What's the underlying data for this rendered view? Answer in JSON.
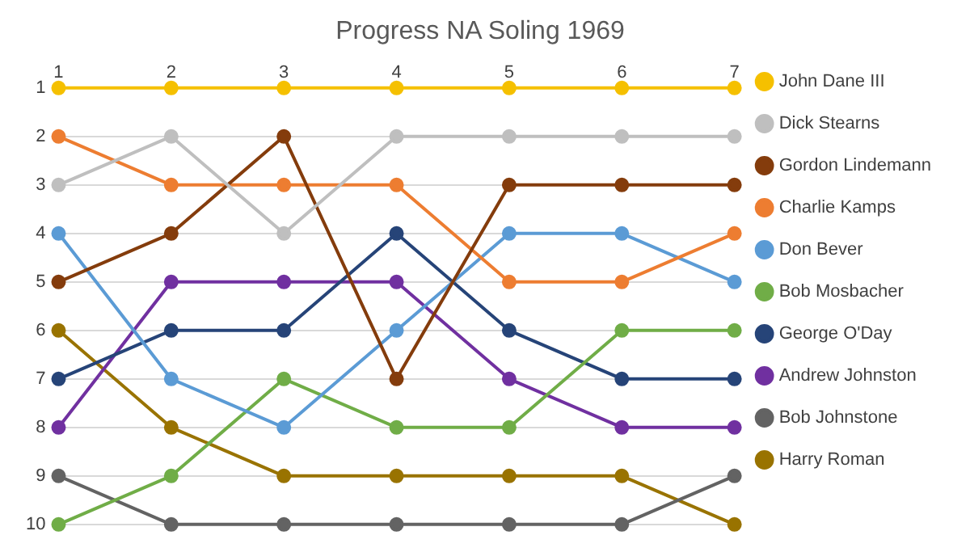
{
  "chart_data": {
    "type": "line",
    "title": "Progress NA Soling 1969",
    "x": [
      1,
      2,
      3,
      4,
      5,
      6,
      7
    ],
    "xlim": [
      1,
      7
    ],
    "xticks": [
      1,
      2,
      3,
      4,
      5,
      6,
      7
    ],
    "ylim": [
      10,
      1
    ],
    "yticks": [
      1,
      2,
      3,
      4,
      5,
      6,
      7,
      8,
      9,
      10
    ],
    "grid": "y",
    "legend": "right",
    "marker": "circle",
    "line_style": "solid",
    "series": [
      {
        "name": "John Dane III",
        "color": "#f5c000",
        "values": [
          1,
          1,
          1,
          1,
          1,
          1,
          1
        ]
      },
      {
        "name": "Dick Stearns",
        "color": "#bfbfbf",
        "values": [
          3,
          2,
          4,
          2,
          2,
          2,
          2
        ]
      },
      {
        "name": "Gordon Lindemann",
        "color": "#843c0c",
        "values": [
          5,
          4,
          2,
          7,
          3,
          3,
          3
        ]
      },
      {
        "name": "Charlie Kamps",
        "color": "#ed7d31",
        "values": [
          2,
          3,
          3,
          3,
          5,
          5,
          4
        ]
      },
      {
        "name": "Don Bever",
        "color": "#5b9bd5",
        "values": [
          4,
          7,
          8,
          6,
          4,
          4,
          5
        ]
      },
      {
        "name": "Bob Mosbacher",
        "color": "#70ad47",
        "values": [
          10,
          9,
          7,
          8,
          8,
          6,
          6
        ]
      },
      {
        "name": "George O'Day",
        "color": "#264478",
        "values": [
          7,
          6,
          6,
          4,
          6,
          7,
          7
        ]
      },
      {
        "name": "Andrew Johnston",
        "color": "#7030a0",
        "values": [
          8,
          5,
          5,
          5,
          7,
          8,
          8
        ]
      },
      {
        "name": "Bob Johnstone",
        "color": "#636363",
        "values": [
          9,
          10,
          10,
          10,
          10,
          10,
          9
        ]
      },
      {
        "name": "Harry Roman",
        "color": "#997300",
        "values": [
          6,
          8,
          9,
          9,
          9,
          9,
          10
        ]
      }
    ]
  }
}
